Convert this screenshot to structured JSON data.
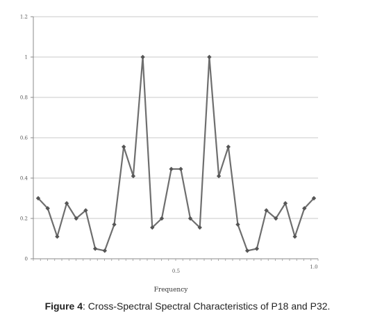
{
  "caption": {
    "label": "Figure 4",
    "text": ": Cross-Spectral Spectral Characteristics of P18 and P32."
  },
  "chart_data": {
    "type": "line",
    "xlabel": "Frequency",
    "ylabel": "",
    "xlim": [
      0,
      1.0
    ],
    "ylim": [
      0,
      1.2
    ],
    "y_ticks": [
      "0",
      "0.2",
      "0.4",
      "0.6",
      "0.8",
      "1",
      "1.2"
    ],
    "x_ticks": [
      {
        "value": 0.5,
        "label": "0.5"
      },
      {
        "value": 1.0,
        "label": "1.0"
      }
    ],
    "grid": true,
    "line_color": "#6e6e6e",
    "series": [
      {
        "x": [
          0.0,
          0.0345,
          0.069,
          0.1034,
          0.1379,
          0.1724,
          0.2069,
          0.2414,
          0.2759,
          0.3103,
          0.3448,
          0.3793,
          0.4138,
          0.4483,
          0.4828,
          0.5172,
          0.5517,
          0.5862,
          0.6207,
          0.6552,
          0.6897,
          0.7241,
          0.7586,
          0.7931,
          0.8276,
          0.8621,
          0.8966,
          0.931,
          0.9655,
          1.0
        ],
        "y": [
          0.3,
          0.25,
          0.11,
          0.275,
          0.2,
          0.24,
          0.05,
          0.04,
          0.17,
          0.555,
          0.41,
          1.0,
          0.155,
          0.2,
          0.445,
          0.445,
          0.2,
          0.155,
          1.0,
          0.41,
          0.555,
          0.17,
          0.04,
          0.05,
          0.24,
          0.2,
          0.275,
          0.11,
          0.25,
          0.3
        ]
      }
    ]
  }
}
